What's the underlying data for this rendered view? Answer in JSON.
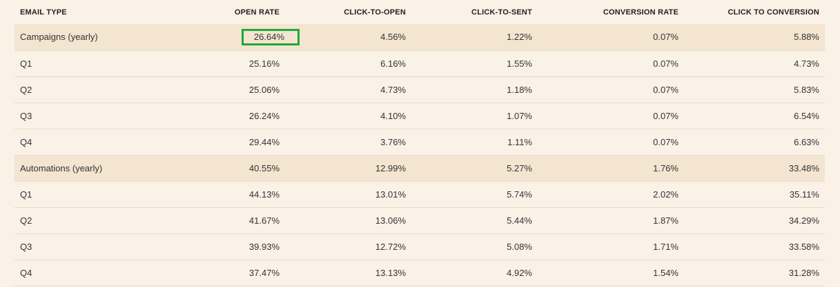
{
  "table": {
    "headers": [
      "EMAIL TYPE",
      "OPEN RATE",
      "CLICK-TO-OPEN",
      "CLICK-TO-SENT",
      "CONVERSION RATE",
      "CLICK TO CONVERSION"
    ],
    "rows": [
      [
        "Campaigns (yearly)",
        "26.64%",
        "4.56%",
        "1.22%",
        "0.07%",
        "5.88%"
      ],
      [
        "Q1",
        "25.16%",
        "6.16%",
        "1.55%",
        "0.07%",
        "4.73%"
      ],
      [
        "Q2",
        "25.06%",
        "4.73%",
        "1.18%",
        "0.07%",
        "5.83%"
      ],
      [
        "Q3",
        "26.24%",
        "4.10%",
        "1.07%",
        "0.07%",
        "6.54%"
      ],
      [
        "Q4",
        "29.44%",
        "3.76%",
        "1.11%",
        "0.07%",
        "6.63%"
      ],
      [
        "Automations (yearly)",
        "40.55%",
        "12.99%",
        "5.27%",
        "1.76%",
        "33.48%"
      ],
      [
        "Q1",
        "44.13%",
        "13.01%",
        "5.74%",
        "2.02%",
        "35.11%"
      ],
      [
        "Q2",
        "41.67%",
        "13.06%",
        "5.44%",
        "1.87%",
        "34.29%"
      ],
      [
        "Q3",
        "39.93%",
        "12.72%",
        "5.08%",
        "1.71%",
        "33.58%"
      ],
      [
        "Q4",
        "37.47%",
        "13.13%",
        "4.92%",
        "1.54%",
        "31.28%"
      ]
    ]
  },
  "colors": {
    "background": "#faf1e7",
    "group_row": "#f3e5d0",
    "highlight_border": "#1fa83a",
    "row_divider": "#e6dccd"
  }
}
